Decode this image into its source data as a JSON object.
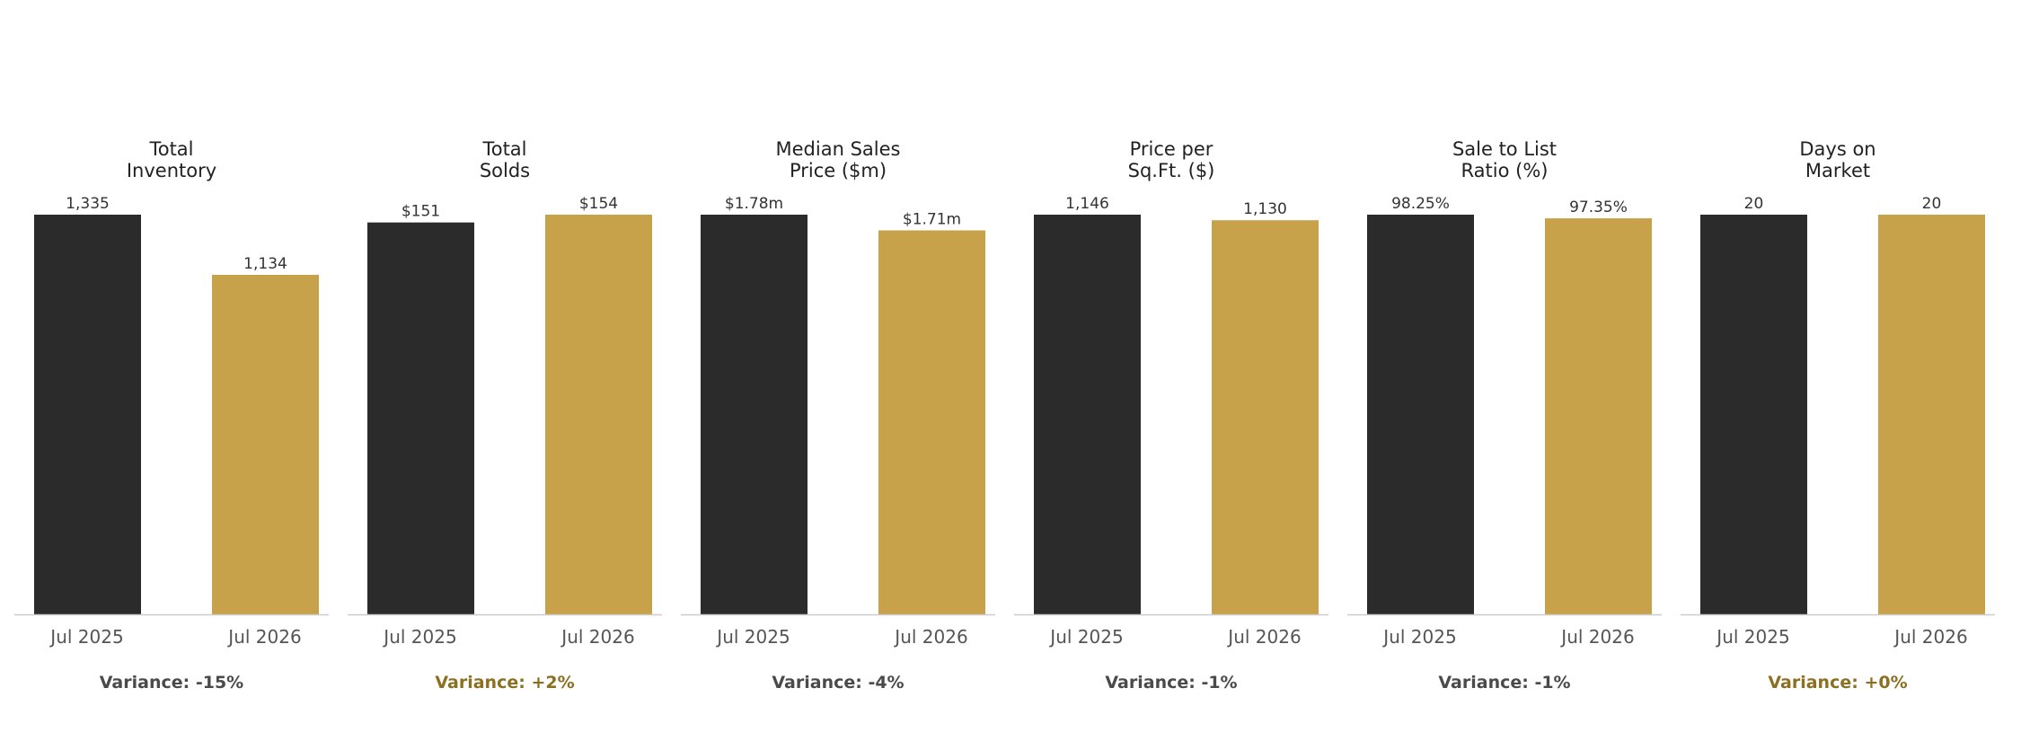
{
  "colors": {
    "baseline_bar": "#2b2b2b",
    "current_bar": "#c8a24b",
    "variance_negative": "#4a4a4a",
    "variance_positive": "#8a7020",
    "axis": "#cccccc",
    "tick_label": "#555555",
    "value_label": "#333333"
  },
  "chart_data": [
    {
      "type": "bar",
      "title": "Total\nInventory",
      "categories": [
        "Jul 2025",
        "Jul 2026"
      ],
      "values": [
        1335,
        1134
      ],
      "value_labels": [
        "1,335",
        "1,134"
      ],
      "variance": "Variance: -15%",
      "variance_sign": "negative"
    },
    {
      "type": "bar",
      "title": "Total\nSolds",
      "categories": [
        "Jul 2025",
        "Jul 2026"
      ],
      "values": [
        151,
        154
      ],
      "value_labels": [
        "$151",
        "$154"
      ],
      "variance": "Variance: +2%",
      "variance_sign": "positive"
    },
    {
      "type": "bar",
      "title": "Median Sales\nPrice ($m)",
      "categories": [
        "Jul 2025",
        "Jul 2026"
      ],
      "values": [
        1.78,
        1.71
      ],
      "value_labels": [
        "$1.78m",
        "$1.71m"
      ],
      "variance": "Variance: -4%",
      "variance_sign": "negative"
    },
    {
      "type": "bar",
      "title": "Price per\nSq.Ft. ($)",
      "categories": [
        "Jul 2025",
        "Jul 2026"
      ],
      "values": [
        1146,
        1130
      ],
      "value_labels": [
        "1,146",
        "1,130"
      ],
      "variance": "Variance: -1%",
      "variance_sign": "negative"
    },
    {
      "type": "bar",
      "title": "Sale to List\nRatio (%)",
      "categories": [
        "Jul 2025",
        "Jul 2026"
      ],
      "values": [
        98.25,
        97.35
      ],
      "value_labels": [
        "98.25%",
        "97.35%"
      ],
      "variance": "Variance: -1%",
      "variance_sign": "negative"
    },
    {
      "type": "bar",
      "title": "Days on\nMarket",
      "categories": [
        "Jul 2025",
        "Jul 2026"
      ],
      "values": [
        20,
        20
      ],
      "value_labels": [
        "20",
        "20"
      ],
      "variance": "Variance: +0%",
      "variance_sign": "positive"
    }
  ]
}
